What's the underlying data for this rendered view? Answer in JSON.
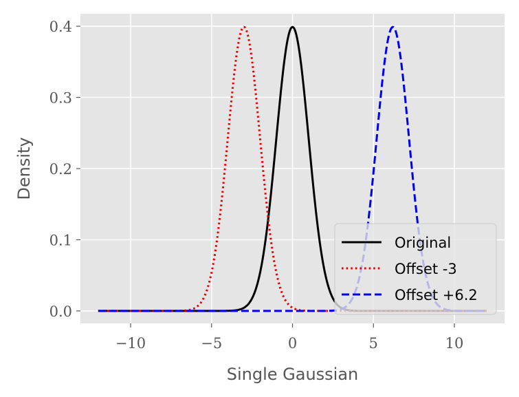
{
  "chart_data": {
    "type": "line",
    "title": "",
    "xlabel": "Single Gaussian",
    "ylabel": "Density",
    "xlim": [
      -13.1,
      13.1
    ],
    "ylim": [
      -0.0175,
      0.4175
    ],
    "xticks": [
      -10,
      -5,
      0,
      5,
      10
    ],
    "xtick_labels": [
      "−10",
      "−5",
      "0",
      "5",
      "10"
    ],
    "yticks": [
      0.0,
      0.1,
      0.2,
      0.3,
      0.4
    ],
    "ytick_labels": [
      "0.0",
      "0.1",
      "0.2",
      "0.3",
      "0.4"
    ],
    "grid": true,
    "background": "#e5e5e5",
    "legend_position": "lower right",
    "series": [
      {
        "name": "Original",
        "distribution": "normal",
        "mean": 0,
        "std": 1,
        "x_range": [
          -12,
          12
        ],
        "peak": 0.399,
        "color": "#000000",
        "style": "solid"
      },
      {
        "name": "Offset -3",
        "distribution": "normal",
        "mean": -3,
        "std": 1,
        "x_range": [
          -12,
          12
        ],
        "peak": 0.399,
        "color": "#ee0000",
        "style": "dotted"
      },
      {
        "name": "Offset +6.2",
        "distribution": "normal",
        "mean": 6.2,
        "std": 1,
        "x_range": [
          -12,
          12
        ],
        "peak": 0.399,
        "color": "#0000ee",
        "style": "dashed"
      }
    ]
  }
}
